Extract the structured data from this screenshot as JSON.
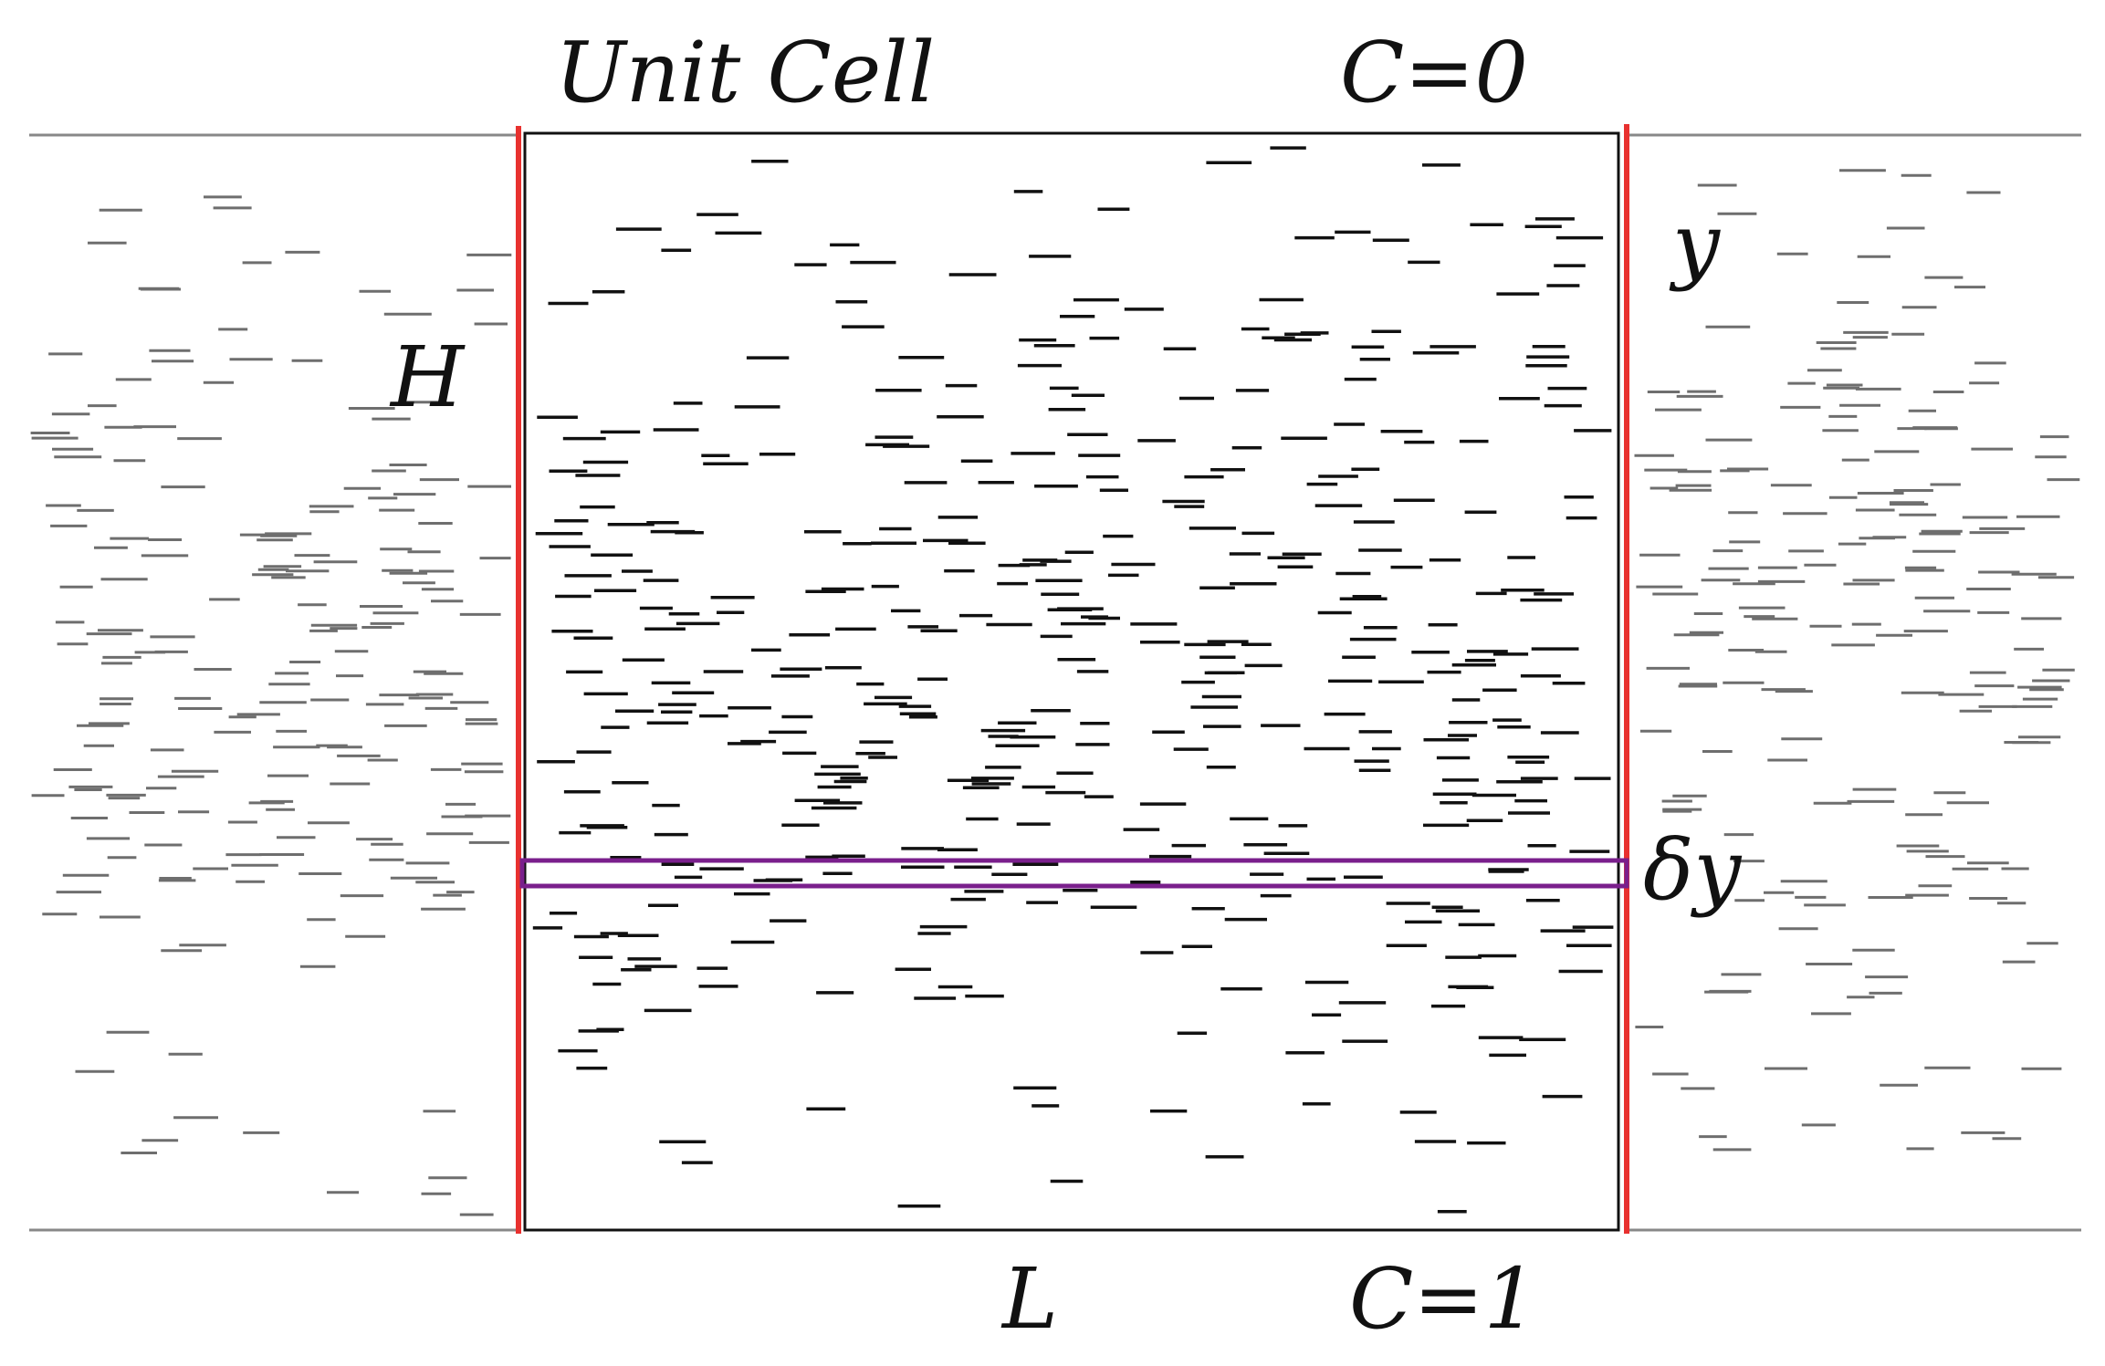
{
  "labels": {
    "unit_cell": "Unit Cell",
    "top_boundary": "C=0",
    "bottom_boundary": "C=1",
    "vertical_axis": "y",
    "height": "H",
    "slice": "δy",
    "length": "L"
  },
  "colors": {
    "background": "#ffffff",
    "cell_border": "#111111",
    "periodic_boundary": "#e8312f",
    "slice_box": "#7a1f8c",
    "fracture_main": "#111111",
    "fracture_replica": "#6e6e6e",
    "domain_line": "#888888"
  }
}
